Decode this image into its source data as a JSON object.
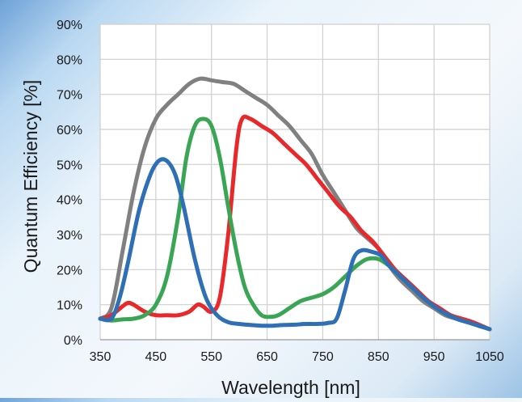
{
  "chart_data": {
    "type": "line",
    "title": "",
    "xlabel": "Wavelength [nm]",
    "ylabel": "Quantum Efficiency [%]",
    "xlim": [
      350,
      1050
    ],
    "ylim": [
      0,
      90
    ],
    "x_ticks": [
      350,
      450,
      550,
      650,
      750,
      850,
      950,
      1050
    ],
    "y_ticks": [
      0,
      10,
      20,
      30,
      40,
      50,
      60,
      70,
      80,
      90
    ],
    "y_tick_labels": [
      "0%",
      "10%",
      "20%",
      "30%",
      "40%",
      "50%",
      "60%",
      "70%",
      "80%",
      "90%"
    ],
    "grid": true,
    "legend": "none",
    "series": [
      {
        "color": "#808080",
        "points": [
          [
            350,
            6
          ],
          [
            370,
            9
          ],
          [
            390,
            25
          ],
          [
            410,
            42
          ],
          [
            430,
            55
          ],
          [
            450,
            63
          ],
          [
            470,
            67
          ],
          [
            490,
            70
          ],
          [
            510,
            73
          ],
          [
            530,
            74.5
          ],
          [
            550,
            74
          ],
          [
            570,
            73.5
          ],
          [
            590,
            73
          ],
          [
            610,
            71
          ],
          [
            630,
            69
          ],
          [
            650,
            67
          ],
          [
            670,
            64
          ],
          [
            690,
            61
          ],
          [
            710,
            57
          ],
          [
            730,
            53
          ],
          [
            750,
            47
          ],
          [
            770,
            42
          ],
          [
            790,
            37
          ],
          [
            810,
            32
          ],
          [
            830,
            29
          ],
          [
            850,
            26
          ],
          [
            870,
            21
          ],
          [
            890,
            17
          ],
          [
            910,
            14
          ],
          [
            930,
            11
          ],
          [
            950,
            9
          ],
          [
            970,
            7
          ],
          [
            990,
            6
          ],
          [
            1010,
            5
          ],
          [
            1030,
            4
          ],
          [
            1050,
            3
          ]
        ]
      },
      {
        "color": "#e8282a",
        "points": [
          [
            350,
            6
          ],
          [
            370,
            7
          ],
          [
            390,
            9.5
          ],
          [
            400,
            10.5
          ],
          [
            410,
            10
          ],
          [
            430,
            8
          ],
          [
            450,
            7
          ],
          [
            470,
            7
          ],
          [
            490,
            7
          ],
          [
            510,
            8
          ],
          [
            525,
            10
          ],
          [
            535,
            9.5
          ],
          [
            550,
            8
          ],
          [
            565,
            12
          ],
          [
            580,
            30
          ],
          [
            595,
            55
          ],
          [
            605,
            63
          ],
          [
            620,
            63
          ],
          [
            640,
            61
          ],
          [
            660,
            59
          ],
          [
            680,
            56
          ],
          [
            700,
            53
          ],
          [
            720,
            50
          ],
          [
            740,
            46
          ],
          [
            760,
            42
          ],
          [
            780,
            38
          ],
          [
            800,
            35
          ],
          [
            820,
            31
          ],
          [
            840,
            28
          ],
          [
            860,
            24
          ],
          [
            880,
            20
          ],
          [
            900,
            17
          ],
          [
            920,
            14
          ],
          [
            940,
            11
          ],
          [
            960,
            9
          ],
          [
            980,
            7
          ],
          [
            1000,
            6
          ],
          [
            1020,
            5
          ],
          [
            1050,
            3
          ]
        ]
      },
      {
        "color": "#3aa655",
        "points": [
          [
            350,
            6
          ],
          [
            370,
            5.5
          ],
          [
            390,
            5.8
          ],
          [
            410,
            6
          ],
          [
            430,
            7
          ],
          [
            450,
            10
          ],
          [
            470,
            18
          ],
          [
            490,
            35
          ],
          [
            505,
            52
          ],
          [
            520,
            61
          ],
          [
            535,
            63
          ],
          [
            550,
            61
          ],
          [
            565,
            52
          ],
          [
            580,
            38
          ],
          [
            595,
            25
          ],
          [
            610,
            15
          ],
          [
            625,
            10
          ],
          [
            640,
            7
          ],
          [
            655,
            6.5
          ],
          [
            670,
            7
          ],
          [
            690,
            9
          ],
          [
            710,
            11
          ],
          [
            730,
            12
          ],
          [
            750,
            13
          ],
          [
            770,
            15
          ],
          [
            790,
            18
          ],
          [
            810,
            21
          ],
          [
            830,
            23
          ],
          [
            850,
            23
          ],
          [
            870,
            21
          ],
          [
            890,
            18
          ],
          [
            910,
            15
          ],
          [
            930,
            12
          ],
          [
            950,
            9.5
          ],
          [
            970,
            7.5
          ],
          [
            990,
            6
          ],
          [
            1010,
            5
          ],
          [
            1030,
            4
          ],
          [
            1050,
            3
          ]
        ]
      },
      {
        "color": "#2e6fb5",
        "points": [
          [
            350,
            6
          ],
          [
            370,
            6
          ],
          [
            385,
            12
          ],
          [
            400,
            22
          ],
          [
            420,
            37
          ],
          [
            440,
            47
          ],
          [
            455,
            51
          ],
          [
            470,
            51
          ],
          [
            485,
            47
          ],
          [
            500,
            38
          ],
          [
            520,
            23
          ],
          [
            540,
            12
          ],
          [
            560,
            7
          ],
          [
            580,
            5
          ],
          [
            600,
            4.5
          ],
          [
            620,
            4.2
          ],
          [
            640,
            4
          ],
          [
            660,
            4
          ],
          [
            680,
            4.2
          ],
          [
            700,
            4.3
          ],
          [
            720,
            4.5
          ],
          [
            740,
            4.5
          ],
          [
            760,
            4.8
          ],
          [
            775,
            6
          ],
          [
            790,
            14
          ],
          [
            805,
            23
          ],
          [
            820,
            25.5
          ],
          [
            840,
            25
          ],
          [
            855,
            24
          ],
          [
            870,
            21
          ],
          [
            890,
            18
          ],
          [
            910,
            15
          ],
          [
            930,
            12
          ],
          [
            950,
            9.5
          ],
          [
            970,
            7.5
          ],
          [
            990,
            6
          ],
          [
            1010,
            5
          ],
          [
            1030,
            4
          ],
          [
            1050,
            3
          ]
        ]
      }
    ]
  }
}
